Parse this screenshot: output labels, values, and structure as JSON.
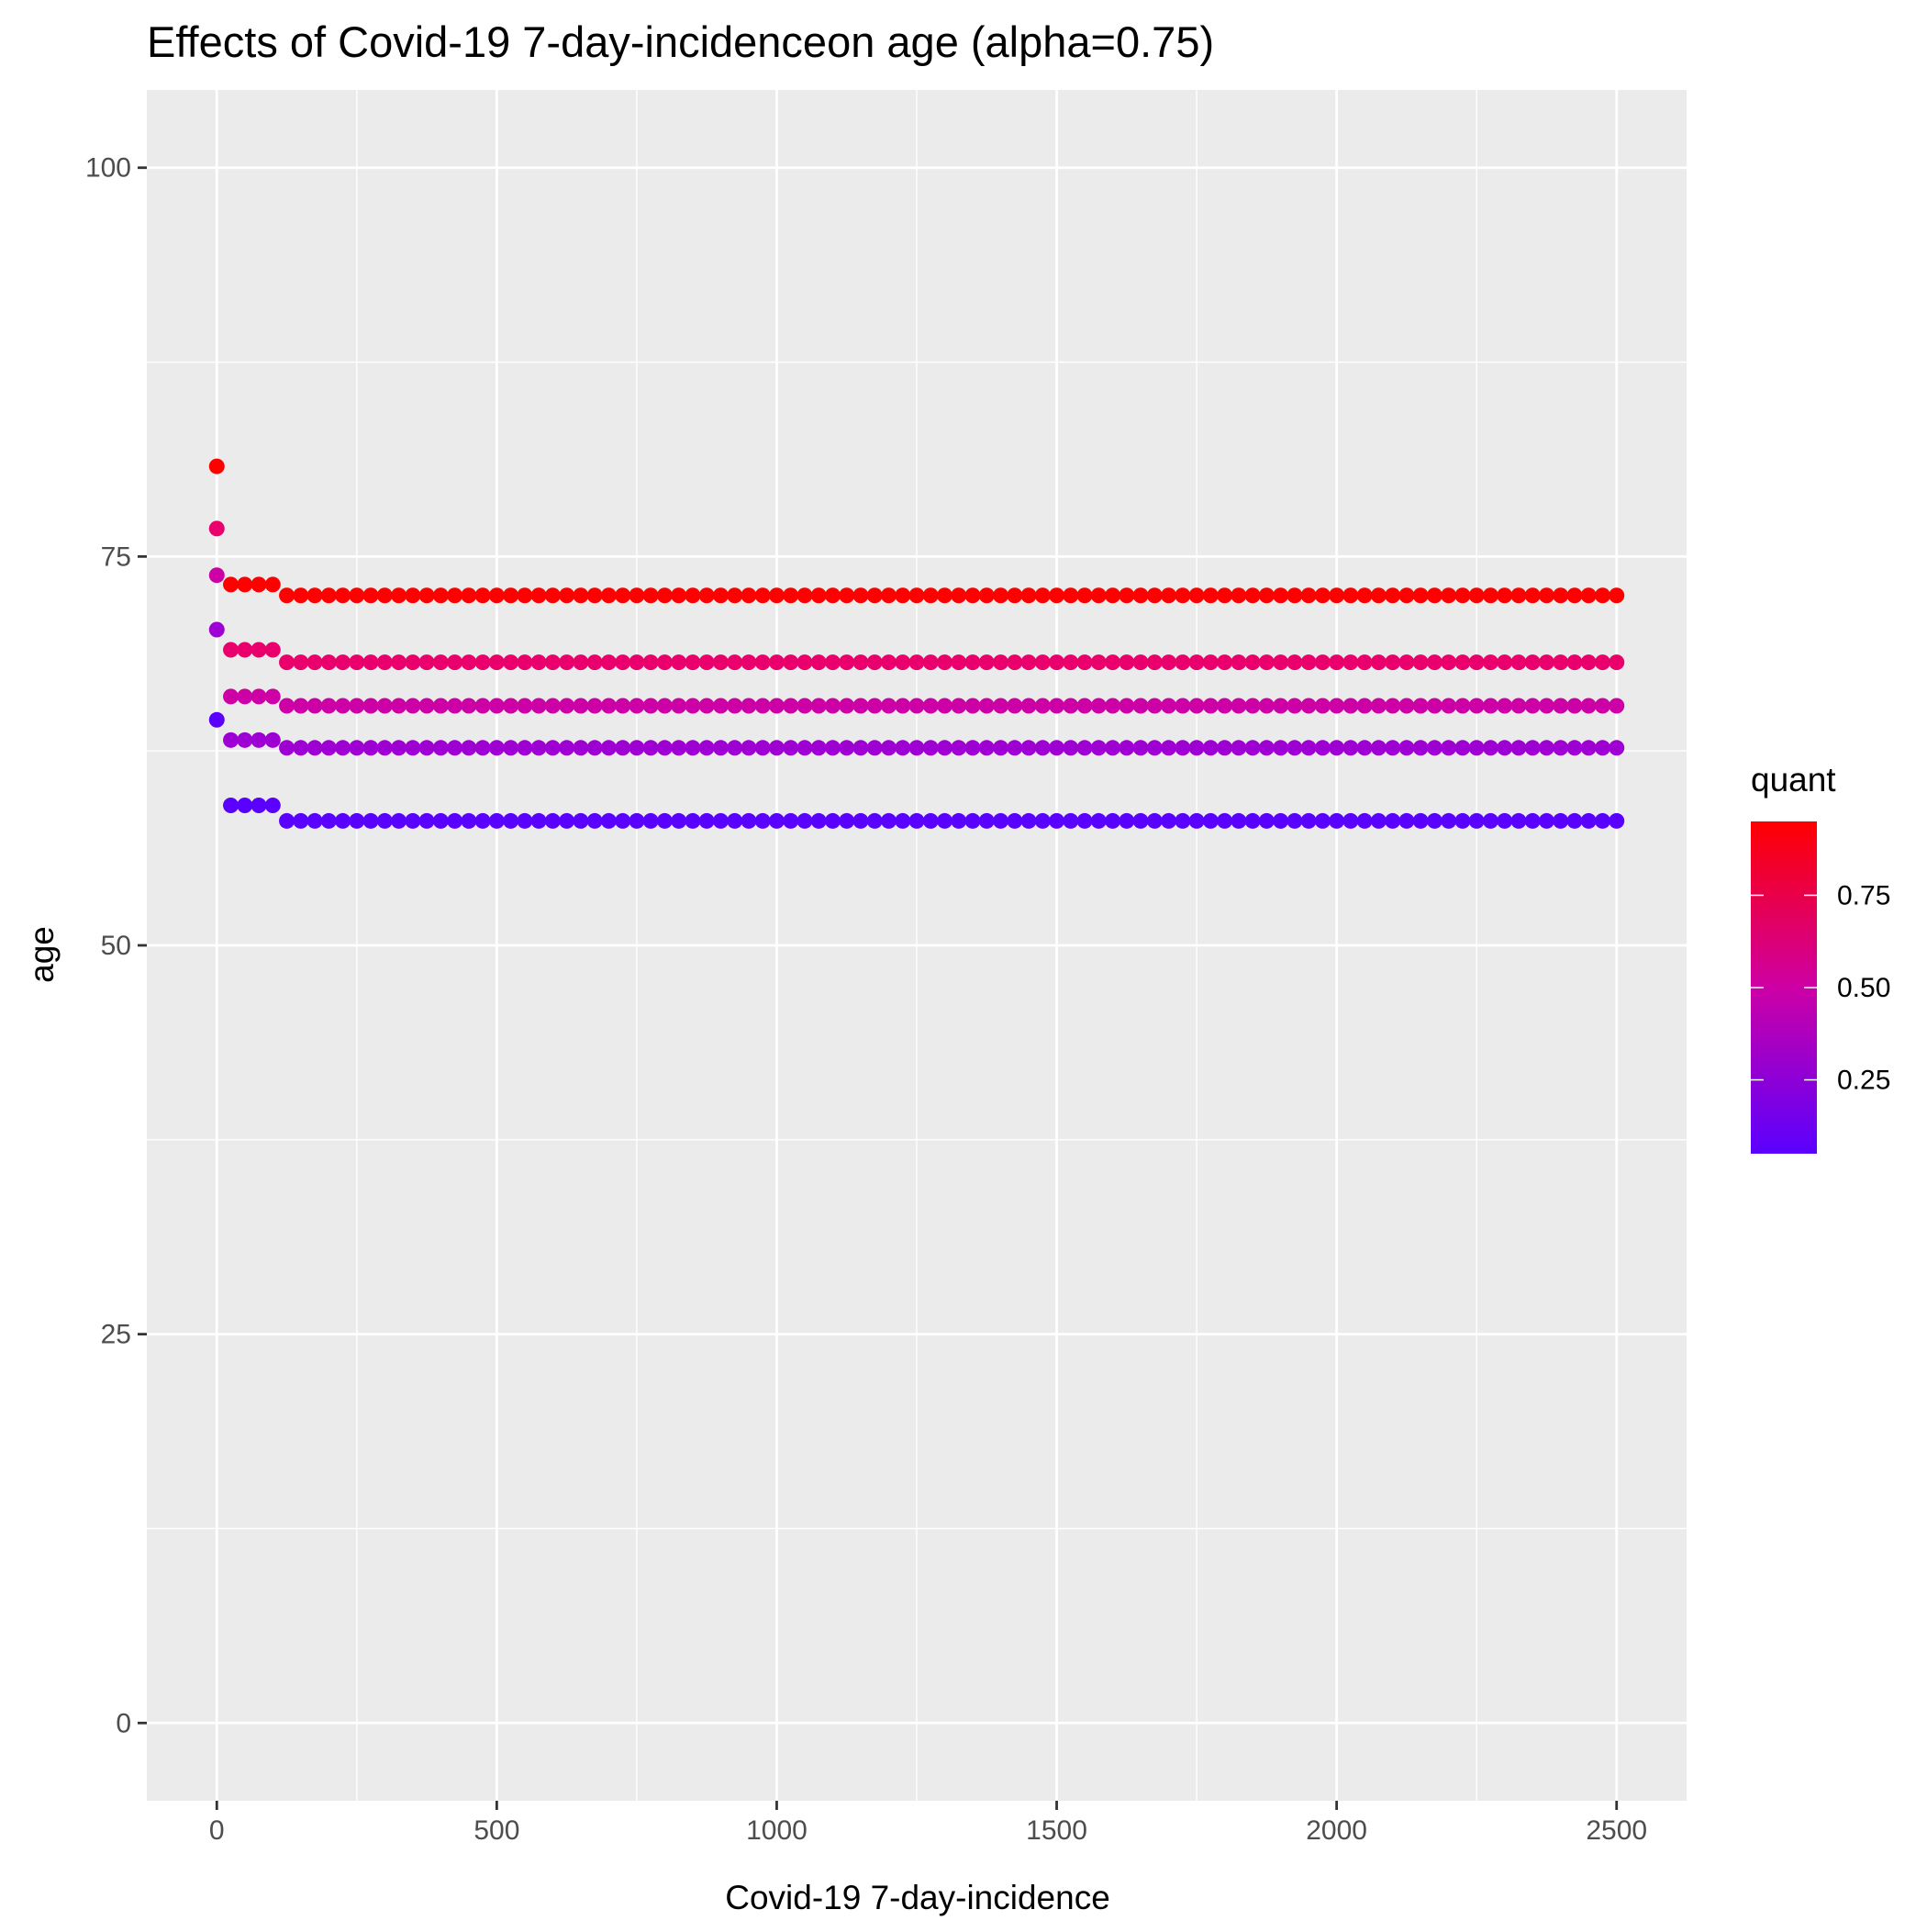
{
  "chart_data": {
    "type": "scatter",
    "title": "Effects of Covid-19 7-day-incidenceon age (alpha=0.75)",
    "xlabel": "Covid-19 7-day-incidence",
    "ylabel": "age",
    "xlim": [
      -125,
      2625
    ],
    "ylim": [
      -5,
      105
    ],
    "x_ticks": [
      0,
      500,
      1000,
      1500,
      2000,
      2500
    ],
    "x_tick_labels": [
      "0",
      "500",
      "1000",
      "1500",
      "2000",
      "2500"
    ],
    "y_ticks": [
      0,
      25,
      50,
      75,
      100
    ],
    "y_tick_labels": [
      "0",
      "25",
      "50",
      "75",
      "100"
    ],
    "grid": true,
    "background": "#ebebeb",
    "grid_color": "#ffffff",
    "legend": {
      "title": "quant",
      "placement": "right",
      "type": "colorbar",
      "range": [
        0.05,
        0.95
      ],
      "ticks": [
        0.25,
        0.5,
        0.75
      ],
      "tick_labels": [
        "0.25",
        "0.50",
        "0.75"
      ],
      "low_color": "#5a00ff",
      "high_color": "#ff0000"
    },
    "x_grid": {
      "first_point": 0,
      "first_step_start": 25,
      "first_step_end": 100,
      "second_step_start": 125,
      "second_step_end": 2500,
      "step": 25
    },
    "series": [
      {
        "quant": 0.05,
        "color": "#5a00ff",
        "value_at_0": 64.5,
        "value_25_to_100": 59.0,
        "value_125_plus": 58.0
      },
      {
        "quant": 0.25,
        "color": "#9e00d3",
        "value_at_0": 70.3,
        "value_25_to_100": 63.2,
        "value_125_plus": 62.7
      },
      {
        "quant": 0.5,
        "color": "#cd00a5",
        "value_at_0": 73.8,
        "value_25_to_100": 66.0,
        "value_125_plus": 65.4
      },
      {
        "quant": 0.75,
        "color": "#e9006d",
        "value_at_0": 76.8,
        "value_25_to_100": 69.0,
        "value_125_plus": 68.2
      },
      {
        "quant": 0.95,
        "color": "#ff0000",
        "value_at_0": 80.8,
        "value_25_to_100": 73.2,
        "value_125_plus": 72.5
      }
    ]
  }
}
